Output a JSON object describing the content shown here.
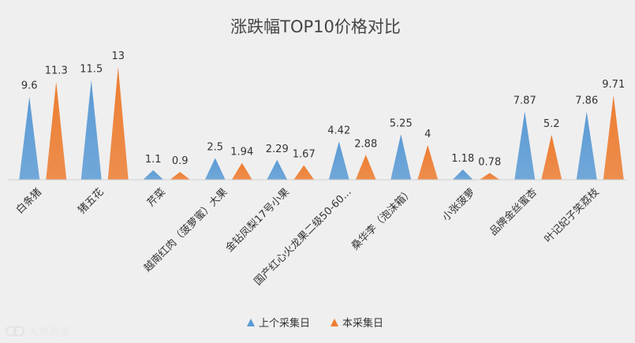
{
  "chart_data": {
    "type": "area",
    "title": "涨跌幅TOP10价格对比",
    "categories": [
      "白条猪",
      "猪五花",
      "芹菜",
      "越南红肉（菠萝蜜）大果",
      "金钻凤梨17号小果",
      "国产红心火龙果二级50-60...",
      "桑华李（泡沫箱）",
      "小张菠萝",
      "品牌金丝蜜杏",
      "叶记妃子笑荔枝"
    ],
    "series": [
      {
        "name": "上个采集日",
        "values": [
          9.6,
          11.5,
          1.1,
          2.5,
          2.29,
          4.42,
          5.25,
          1.18,
          7.87,
          7.86
        ],
        "labels": [
          "9.6",
          "11.5",
          "1.1",
          "2.5",
          "2.29",
          "4.42",
          "5.25",
          "1.18",
          "7.87",
          "7.86"
        ],
        "color": "#5b9bd5"
      },
      {
        "name": "本采集日",
        "values": [
          11.3,
          13,
          0.9,
          1.94,
          1.67,
          2.88,
          4,
          0.78,
          5.2,
          9.71
        ],
        "labels": [
          "11.3",
          "13",
          "0.9",
          "1.94",
          "1.67",
          "2.88",
          "4",
          "0.78",
          "5.2",
          "9.71"
        ],
        "color": "#ed7d31"
      }
    ],
    "ylim": [
      0,
      13
    ],
    "legend_position": "bottom",
    "grid": false
  },
  "watermark": {
    "text": "大数跨境"
  },
  "colors": {
    "background": "#efefef",
    "axis": "#d0d0d0"
  }
}
